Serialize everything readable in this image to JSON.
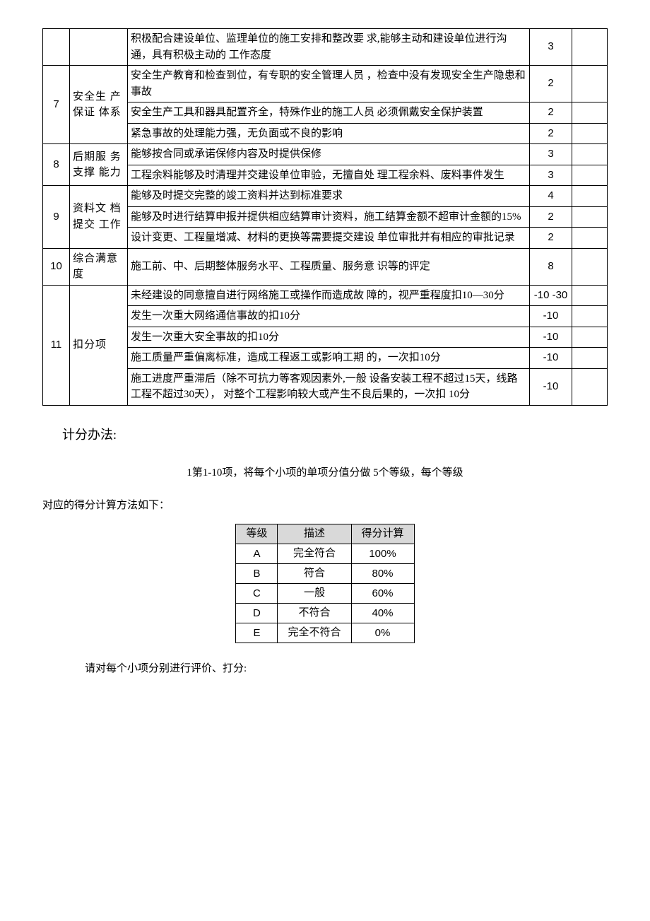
{
  "main_table": {
    "columns": {
      "idx_width": 38,
      "cat_width": 82,
      "score_width": 60,
      "blank_width": 50
    },
    "rows": [
      {
        "idx": "",
        "cat": "",
        "desc": "积极配合建设单位、监理单位的施工安排和整改要  求,能够主动和建设单位进行沟通，具有积极主动的  工作态度",
        "score": "3",
        "idx_rowspan": 1,
        "cat_rowspan": 1,
        "show_idx": true,
        "show_cat": true
      },
      {
        "idx": "7",
        "cat": "安全生  产保证  体系",
        "desc": "安全生产教育和检查到位，有专职的安全管理人员  ，检查中没有发现安全生产隐患和事故",
        "score": "2",
        "idx_rowspan": 3,
        "cat_rowspan": 3,
        "show_idx": true,
        "show_cat": true
      },
      {
        "desc": "安全生产工具和器具配置齐全，特殊作业的施工人员  必须佩戴安全保护装置",
        "score": "2",
        "show_idx": false,
        "show_cat": false
      },
      {
        "desc": "紧急事故的处理能力强，无负面或不良的影响",
        "score": "2",
        "show_idx": false,
        "show_cat": false
      },
      {
        "idx": "8",
        "cat": "后期服  务支撑  能力",
        "desc": "能够按合同或承诺保修内容及时提供保修",
        "score": "3",
        "idx_rowspan": 2,
        "cat_rowspan": 2,
        "show_idx": true,
        "show_cat": true
      },
      {
        "desc": "工程余料能够及时清理并交建设单位审验，无擅自处  理工程余料、废料事件发生",
        "score": "3",
        "show_idx": false,
        "show_cat": false
      },
      {
        "idx": "9",
        "cat": "资料文  档提交  工作",
        "desc": "能够及时提交完整的竣工资料并达到标准要求",
        "score": "4",
        "idx_rowspan": 3,
        "cat_rowspan": 3,
        "show_idx": true,
        "show_cat": true
      },
      {
        "desc": "能够及时进行结算申报并提供相应结算审计资料，施工结算金额不超审计金额的15%",
        "score": "2",
        "show_idx": false,
        "show_cat": false
      },
      {
        "desc": "设计变更、工程量增减、材料的更换等需要提交建设  单位审批并有相应的审批记录",
        "score": "2",
        "show_idx": false,
        "show_cat": false
      },
      {
        "idx": "10",
        "cat": "综合满意度",
        "desc": "施工前、中、后期整体服务水平、工程质量、服务意  识等的评定",
        "score": "8",
        "idx_rowspan": 1,
        "cat_rowspan": 1,
        "show_idx": true,
        "show_cat": true
      },
      {
        "idx": "11",
        "cat": "扣分项",
        "desc": "未经建设的同意擅自进行网络施工或操作而造成故  障的，视严重程度扣10—30分",
        "score": "-10 -30",
        "idx_rowspan": 5,
        "cat_rowspan": 5,
        "show_idx": true,
        "show_cat": true
      },
      {
        "desc": "发生一次重大网络通信事故的扣10分",
        "score": "-10",
        "show_idx": false,
        "show_cat": false
      },
      {
        "desc": "发生一次重大安全事故的扣10分",
        "score": "-10",
        "show_idx": false,
        "show_cat": false
      },
      {
        "desc": "施工质量严重偏离标准，造成工程返工或影响工期  的，一次扣10分",
        "score": "-10",
        "show_idx": false,
        "show_cat": false
      },
      {
        "desc": "施工进度严重滞后（除不可抗力等客观因素外,一般  设备安装工程不超过15天，线路工程不超过30天），  对整个工程影响较大或产生不良后果的，一次扣    10分",
        "score": "-10",
        "show_idx": false,
        "show_cat": false
      }
    ]
  },
  "scoring_method": {
    "title": "计分办法:",
    "line1": "1第1-10项，将每个小项的单项分值分做 5个等级，每个等级",
    "line2": "对应的得分计算方法如下：",
    "footer": "请对每个小项分别进行评价、打分:"
  },
  "grade_table": {
    "headers": [
      "等级",
      "描述",
      "得分计算"
    ],
    "header_bg": "#d9d9d9",
    "rows": [
      {
        "level": "A",
        "desc": "完全符合",
        "pct": "100%"
      },
      {
        "level": "B",
        "desc": "符合",
        "pct": "80%"
      },
      {
        "level": "C",
        "desc": "一般",
        "pct": "60%"
      },
      {
        "level": "D",
        "desc": "不符合",
        "pct": "40%"
      },
      {
        "level": "E",
        "desc": "完全不符合",
        "pct": "0%"
      }
    ]
  }
}
